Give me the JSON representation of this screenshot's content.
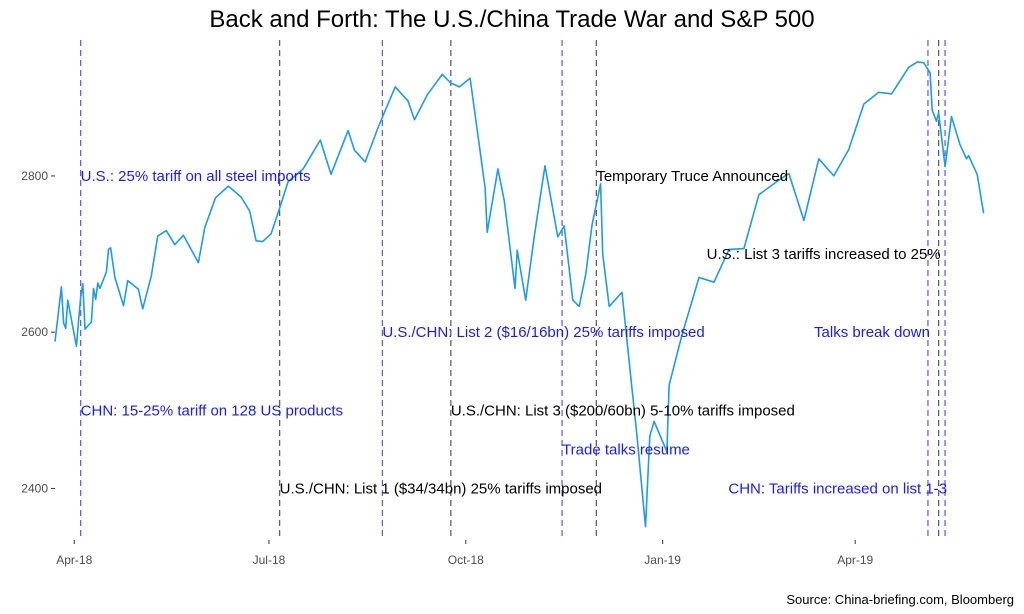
{
  "chart_data": {
    "type": "line",
    "title": "Back and Forth: The U.S./China Trade War and S&P 500",
    "xlabel": "",
    "ylabel": "",
    "source": "Source: China-briefing.com, Bloomberg",
    "line_color": "#1f9be6",
    "grid": false,
    "xlim": [
      "2018-03-23",
      "2019-06-03"
    ],
    "ylim": [
      2334,
      2974
    ],
    "y_ticks": [
      2400,
      2600,
      2800
    ],
    "x_ticks": [
      {
        "date": "2018-04-01",
        "label": "Apr-18"
      },
      {
        "date": "2018-07-01",
        "label": "Jul-18"
      },
      {
        "date": "2018-10-01",
        "label": "Oct-18"
      },
      {
        "date": "2019-01-01",
        "label": "Jan-19"
      },
      {
        "date": "2019-04-01",
        "label": "Apr-19"
      }
    ],
    "series": [
      {
        "x": [
          "2018-03-23",
          "2018-03-26",
          "2018-03-27",
          "2018-03-28",
          "2018-03-29",
          "2018-04-02",
          "2018-04-03",
          "2018-04-04",
          "2018-04-05",
          "2018-04-06",
          "2018-04-09",
          "2018-04-10",
          "2018-04-11",
          "2018-04-12",
          "2018-04-13",
          "2018-04-16",
          "2018-04-17",
          "2018-04-18",
          "2018-04-20",
          "2018-04-24",
          "2018-04-26",
          "2018-05-01",
          "2018-05-03",
          "2018-05-07",
          "2018-05-10",
          "2018-05-14",
          "2018-05-18",
          "2018-05-22",
          "2018-05-29",
          "2018-06-01",
          "2018-06-06",
          "2018-06-12",
          "2018-06-18",
          "2018-06-22",
          "2018-06-25",
          "2018-06-28",
          "2018-07-02",
          "2018-07-06",
          "2018-07-10",
          "2018-07-17",
          "2018-07-25",
          "2018-07-30",
          "2018-08-07",
          "2018-08-10",
          "2018-08-15",
          "2018-08-21",
          "2018-08-29",
          "2018-09-04",
          "2018-09-07",
          "2018-09-13",
          "2018-09-20",
          "2018-09-24",
          "2018-09-28",
          "2018-10-03",
          "2018-10-05",
          "2018-10-10",
          "2018-10-11",
          "2018-10-16",
          "2018-10-19",
          "2018-10-24",
          "2018-10-25",
          "2018-10-29",
          "2018-11-02",
          "2018-11-07",
          "2018-11-13",
          "2018-11-16",
          "2018-11-20",
          "2018-11-23",
          "2018-11-26",
          "2018-11-29",
          "2018-12-03",
          "2018-12-04",
          "2018-12-07",
          "2018-12-13",
          "2018-12-17",
          "2018-12-20",
          "2018-12-24",
          "2018-12-26",
          "2018-12-28",
          "2019-01-03",
          "2019-01-04",
          "2019-01-10",
          "2019-01-18",
          "2019-01-25",
          "2019-02-01",
          "2019-02-08",
          "2019-02-15",
          "2019-02-25",
          "2019-03-01",
          "2019-03-08",
          "2019-03-15",
          "2019-03-22",
          "2019-03-29",
          "2019-04-05",
          "2019-04-12",
          "2019-04-18",
          "2019-04-26",
          "2019-04-30",
          "2019-05-03",
          "2019-05-06",
          "2019-05-07",
          "2019-05-09",
          "2019-05-10",
          "2019-05-13",
          "2019-05-16",
          "2019-05-20",
          "2019-05-23",
          "2019-05-24",
          "2019-05-28",
          "2019-05-31"
        ],
        "y": [
          2588,
          2658,
          2612,
          2605,
          2641,
          2582,
          2614,
          2645,
          2662,
          2604,
          2613,
          2656,
          2642,
          2663,
          2656,
          2677,
          2706,
          2708,
          2670,
          2634,
          2666,
          2655,
          2630,
          2672,
          2723,
          2730,
          2712,
          2724,
          2689,
          2734,
          2772,
          2787,
          2773,
          2755,
          2717,
          2716,
          2726,
          2759,
          2793,
          2809,
          2846,
          2802,
          2858,
          2833,
          2818,
          2862,
          2914,
          2896,
          2872,
          2904,
          2930,
          2919,
          2914,
          2925,
          2885,
          2785,
          2728,
          2809,
          2768,
          2656,
          2705,
          2641,
          2723,
          2813,
          2722,
          2736,
          2641,
          2633,
          2673,
          2737,
          2790,
          2700,
          2633,
          2651,
          2546,
          2467,
          2351,
          2467,
          2486,
          2447,
          2532,
          2596,
          2670,
          2664,
          2706,
          2707,
          2776,
          2796,
          2803,
          2743,
          2822,
          2800,
          2834,
          2892,
          2907,
          2905,
          2939,
          2946,
          2945,
          2932,
          2884,
          2870,
          2881,
          2812,
          2876,
          2840,
          2822,
          2826,
          2802,
          2752
        ]
      }
    ],
    "annotations": [
      {
        "date": "2018-03-23",
        "value": 2800,
        "label": "U.S.: 25% tariff on all steel imports",
        "color": "#1a1aff",
        "line_style": "none"
      },
      {
        "date": "2018-04-04",
        "value": 2500,
        "label": "CHN: 15-25% tariff on 128 US products",
        "color": "#1a1aff",
        "line_style": "dashed"
      },
      {
        "date": "2018-07-06",
        "value": 2400,
        "label": "U.S./CHN: List 1 ($34/34bn) 25% tariffs imposed",
        "color": "#000000",
        "line_style": "dashed"
      },
      {
        "date": "2018-08-23",
        "value": 2600,
        "label": "U.S./CHN: List 2 ($16/16bn) 25% tariffs imposed",
        "color": "#1a1aff",
        "line_style": "dashed"
      },
      {
        "date": "2018-09-24",
        "value": 2500,
        "label": "U.S./CHN: List 3 ($200/60bn) 5-10% tariffs imposed",
        "color": "#000000",
        "line_style": "dashed"
      },
      {
        "date": "2018-11-15",
        "value": 2450,
        "label": "Trade talks resume",
        "color": "#1a1aff",
        "line_style": "dashed"
      },
      {
        "date": "2018-12-01",
        "value": 2800,
        "label": "Temporary Truce Announced",
        "color": "#000000",
        "line_style": "dashed"
      },
      {
        "date": "2019-05-05",
        "value": 2600,
        "label": "Talks break down",
        "color": "#1a1aff",
        "line_style": "dashed"
      },
      {
        "date": "2019-05-10",
        "value": 2700,
        "label": "U.S.: List 3 tariffs increased to 25%",
        "color": "#000000",
        "line_style": "dashed"
      },
      {
        "date": "2019-05-13",
        "value": 2400,
        "label": "CHN: Tariffs increased on list 1-3",
        "color": "#1a1aff",
        "line_style": "dashed"
      }
    ]
  }
}
